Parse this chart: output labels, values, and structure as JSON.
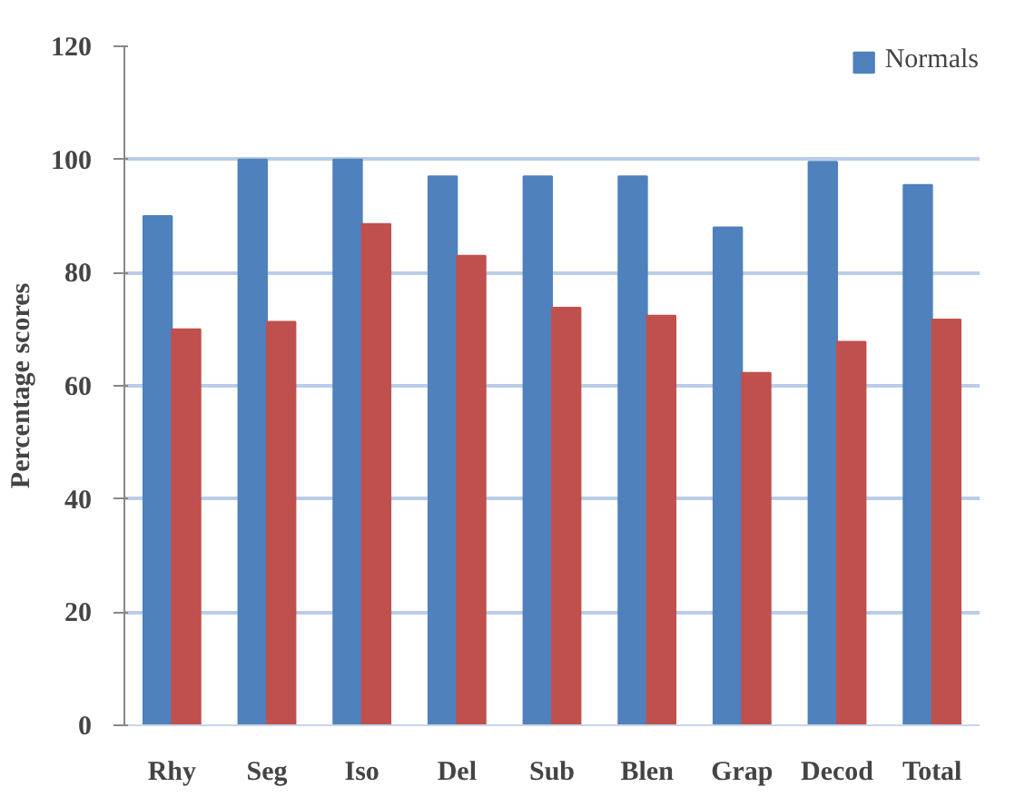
{
  "chart_data": {
    "type": "bar",
    "ylabel": "Percentage scores",
    "categories": [
      "Rhy",
      "Seg",
      "Iso",
      "Del",
      "Sub",
      "Blen",
      "Grap",
      "Decod",
      "Total"
    ],
    "series": [
      {
        "name": "Normals",
        "color": "#4f81bd",
        "values": [
          90,
          100,
          100,
          97,
          97,
          97,
          88,
          99.6,
          95.5
        ]
      },
      {
        "color": "#c0504d",
        "values": [
          70,
          71.3,
          88.6,
          83,
          73.8,
          72.4,
          62.3,
          67.8,
          71.7
        ]
      }
    ],
    "ylim": [
      0,
      120
    ],
    "yticks": [
      0,
      20,
      40,
      60,
      80,
      100,
      120
    ],
    "grid": "y",
    "legend": "top right"
  }
}
